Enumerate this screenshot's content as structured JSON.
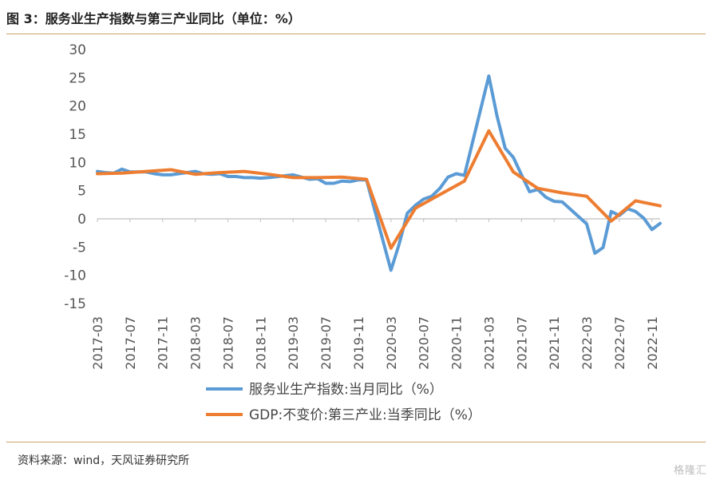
{
  "header": {
    "title": "图 3：服务业生产指数与第三产业同比（单位：%）"
  },
  "footer": {
    "source": "资料来源：wind，天风证券研究所",
    "watermark": "格隆汇"
  },
  "colors": {
    "series1": "#5b9bd5",
    "series2": "#ed7d31",
    "rule": "#c9a36a",
    "axis": "#bfbfbf"
  },
  "chart_data": {
    "type": "line",
    "title": "服务业生产指数与第三产业同比（单位：%）",
    "ylim": [
      -15,
      30
    ],
    "yticks": [
      -15,
      -10,
      -5,
      0,
      5,
      10,
      15,
      20,
      25,
      30
    ],
    "xlim": [
      "2017-03",
      "2022-12"
    ],
    "xticks": [
      "2017-03",
      "2017-07",
      "2017-11",
      "2018-03",
      "2018-07",
      "2018-11",
      "2019-03",
      "2019-07",
      "2019-11",
      "2020-03",
      "2020-07",
      "2020-11",
      "2021-03",
      "2021-07",
      "2021-11",
      "2022-03",
      "2022-07",
      "2022-11"
    ],
    "legend_position": "bottom",
    "series": [
      {
        "name": "服务业生产指数:当月同比（%）",
        "points": [
          [
            "2017-03",
            8.4
          ],
          [
            "2017-04",
            8.2
          ],
          [
            "2017-05",
            8.1
          ],
          [
            "2017-06",
            8.8
          ],
          [
            "2017-07",
            8.3
          ],
          [
            "2017-08",
            8.3
          ],
          [
            "2017-09",
            8.3
          ],
          [
            "2017-10",
            8.0
          ],
          [
            "2017-11",
            7.8
          ],
          [
            "2017-12",
            7.8
          ],
          [
            "2018-03",
            8.4
          ],
          [
            "2018-04",
            8.0
          ],
          [
            "2018-05",
            7.9
          ],
          [
            "2018-06",
            8.0
          ],
          [
            "2018-07",
            7.5
          ],
          [
            "2018-08",
            7.5
          ],
          [
            "2018-09",
            7.3
          ],
          [
            "2018-10",
            7.3
          ],
          [
            "2018-11",
            7.2
          ],
          [
            "2018-12",
            7.3
          ],
          [
            "2019-03",
            7.8
          ],
          [
            "2019-04",
            7.4
          ],
          [
            "2019-05",
            7.0
          ],
          [
            "2019-06",
            7.1
          ],
          [
            "2019-07",
            6.3
          ],
          [
            "2019-08",
            6.3
          ],
          [
            "2019-09",
            6.7
          ],
          [
            "2019-10",
            6.6
          ],
          [
            "2019-11",
            6.9
          ],
          [
            "2019-12",
            6.9
          ],
          [
            "2020-03",
            -9.1
          ],
          [
            "2020-04",
            -4.5
          ],
          [
            "2020-05",
            1.0
          ],
          [
            "2020-06",
            2.4
          ],
          [
            "2020-07",
            3.5
          ],
          [
            "2020-08",
            4.0
          ],
          [
            "2020-09",
            5.4
          ],
          [
            "2020-10",
            7.4
          ],
          [
            "2020-11",
            8.0
          ],
          [
            "2020-12",
            7.7
          ],
          [
            "2021-03",
            25.3
          ],
          [
            "2021-04",
            18.2
          ],
          [
            "2021-05",
            12.5
          ],
          [
            "2021-06",
            10.9
          ],
          [
            "2021-07",
            7.8
          ],
          [
            "2021-08",
            4.8
          ],
          [
            "2021-09",
            5.2
          ],
          [
            "2021-10",
            3.8
          ],
          [
            "2021-11",
            3.1
          ],
          [
            "2021-12",
            3.0
          ],
          [
            "2022-03",
            -0.9
          ],
          [
            "2022-04",
            -6.1
          ],
          [
            "2022-05",
            -5.1
          ],
          [
            "2022-06",
            1.3
          ],
          [
            "2022-07",
            0.6
          ],
          [
            "2022-08",
            1.8
          ],
          [
            "2022-09",
            1.3
          ],
          [
            "2022-10",
            0.1
          ],
          [
            "2022-11",
            -1.9
          ],
          [
            "2022-12",
            -0.8
          ]
        ]
      },
      {
        "name": "GDP:不变价:第三产业:当季同比（%）",
        "points": [
          [
            "2017-03",
            8.0
          ],
          [
            "2017-06",
            8.1
          ],
          [
            "2017-09",
            8.4
          ],
          [
            "2017-12",
            8.7
          ],
          [
            "2018-03",
            7.9
          ],
          [
            "2018-06",
            8.2
          ],
          [
            "2018-09",
            8.4
          ],
          [
            "2018-12",
            7.9
          ],
          [
            "2019-03",
            7.3
          ],
          [
            "2019-06",
            7.3
          ],
          [
            "2019-09",
            7.4
          ],
          [
            "2019-12",
            7.0
          ],
          [
            "2020-03",
            -5.2
          ],
          [
            "2020-06",
            1.9
          ],
          [
            "2020-09",
            4.3
          ],
          [
            "2020-12",
            6.7
          ],
          [
            "2021-03",
            15.6
          ],
          [
            "2021-06",
            8.3
          ],
          [
            "2021-09",
            5.4
          ],
          [
            "2021-12",
            4.6
          ],
          [
            "2022-03",
            4.0
          ],
          [
            "2022-06",
            -0.4
          ],
          [
            "2022-09",
            3.2
          ],
          [
            "2022-12",
            2.3
          ]
        ]
      }
    ]
  }
}
